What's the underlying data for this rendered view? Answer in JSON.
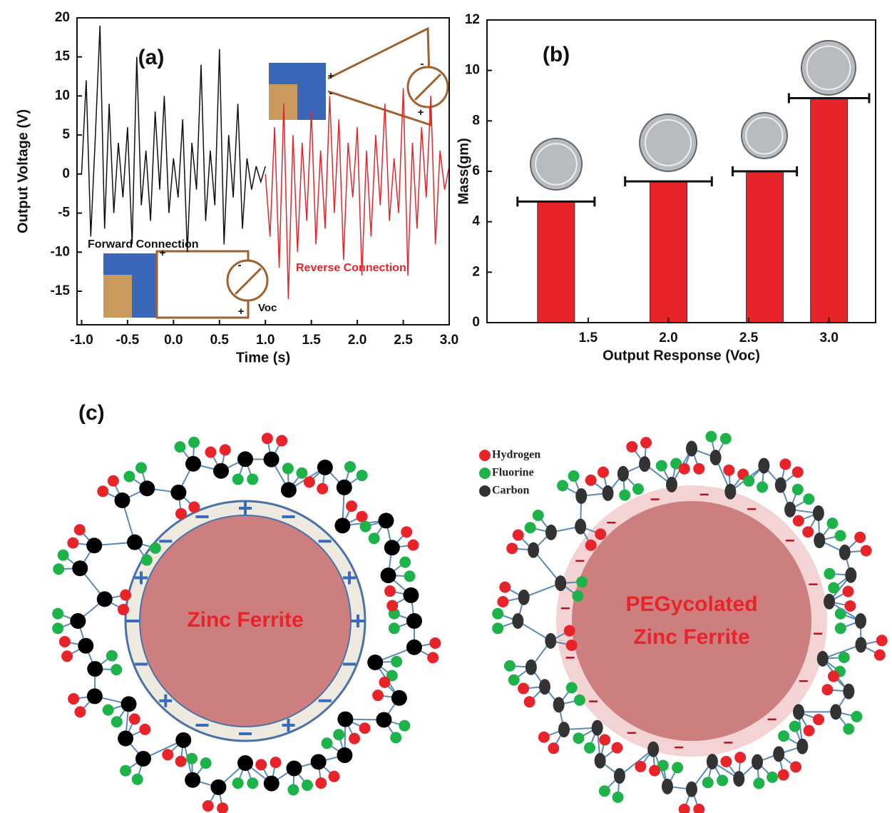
{
  "chart_data": [
    {
      "type": "line",
      "x_label": "Time (s)",
      "y_label": "Output Voltage (V)",
      "annotations": [
        "(a)",
        "Forward Connection",
        "Reverse Connection",
        "Voc",
        "+",
        "-",
        "-",
        "+",
        "+",
        "-",
        "+"
      ],
      "xlim": [
        -1.05,
        3.0
      ],
      "ylim": [
        -19.3,
        20
      ],
      "xticks": [
        {
          "value": -1.0,
          "label": "-1.0"
        },
        -0.5,
        {
          "value": 0.0,
          "label": "0.0"
        },
        0.5,
        {
          "value": 1.0,
          "label": "1.0"
        },
        1.5,
        {
          "value": 2.0,
          "label": "2.0"
        },
        2.5,
        {
          "value": 3.0,
          "label": "3.0"
        }
      ],
      "yticks": [
        -15,
        -10,
        -5,
        0,
        5,
        10,
        15,
        20
      ],
      "series": [
        {
          "color": "#111111",
          "x": [
            -1.0,
            -0.95,
            -0.9,
            -0.85,
            -0.8,
            -0.75,
            -0.7,
            -0.65,
            -0.6,
            -0.55,
            -0.5,
            -0.45,
            -0.4,
            -0.35,
            -0.3,
            -0.25,
            -0.2,
            -0.15,
            -0.1,
            -0.05,
            0.0,
            0.05,
            0.1,
            0.15,
            0.2,
            0.25,
            0.3,
            0.35,
            0.4,
            0.45,
            0.5,
            0.55,
            0.6,
            0.65,
            0.7,
            0.75,
            0.8,
            0.85,
            0.9,
            0.95,
            1.0
          ],
          "values": [
            0,
            12,
            -8,
            5,
            19,
            -7,
            9,
            -5,
            4,
            -3,
            6,
            -9,
            15,
            -4,
            3,
            -6,
            8,
            -2,
            10,
            -5,
            2,
            -3,
            7,
            -10,
            4,
            -2,
            14,
            -6,
            3,
            -4,
            16,
            -9,
            5,
            -3,
            9,
            -7,
            2,
            -2,
            1,
            -1,
            1
          ]
        },
        {
          "color": "#e8242b",
          "x": [
            1.0,
            1.05,
            1.1,
            1.15,
            1.2,
            1.25,
            1.3,
            1.35,
            1.4,
            1.45,
            1.5,
            1.55,
            1.6,
            1.65,
            1.7,
            1.75,
            1.8,
            1.85,
            1.9,
            1.95,
            2.0,
            2.05,
            2.1,
            2.15,
            2.2,
            2.25,
            2.3,
            2.35,
            2.4,
            2.45,
            2.5,
            2.55,
            2.6,
            2.65,
            2.7,
            2.75,
            2.8,
            2.85,
            2.9,
            2.95,
            3.0
          ],
          "values": [
            0,
            -8,
            6,
            -12,
            9,
            -16,
            5,
            -10,
            4,
            -6,
            8,
            -9,
            3,
            -7,
            10,
            -5,
            7,
            -11,
            4,
            -3,
            6,
            -13,
            3,
            -8,
            5,
            -4,
            9,
            -6,
            2,
            -5,
            11,
            -13,
            4,
            -7,
            6,
            -3,
            10,
            -9,
            3,
            -2,
            1
          ]
        }
      ]
    },
    {
      "type": "bar",
      "x_label": "Output Response (Voc)",
      "y_label": "Mass(gm)",
      "annotations": [
        "(b)"
      ],
      "color": "#e8242b",
      "x": [
        1.3,
        2.0,
        2.6,
        3.0
      ],
      "values": [
        4.8,
        5.6,
        6.0,
        8.9
      ],
      "xerr": [
        0.24,
        0.27,
        0.2,
        0.25
      ],
      "xlim": [
        0.87,
        3.29
      ],
      "ylim": [
        0,
        12
      ],
      "xticks": [
        1.5,
        {
          "value": 2.0,
          "label": "2.0"
        },
        2.5,
        {
          "value": 3.0,
          "label": "3.0"
        }
      ],
      "yticks": [
        0,
        2,
        4,
        6,
        8,
        10,
        12
      ]
    }
  ],
  "diagram": {
    "label": "(c)",
    "legend": [
      "Hydrogen",
      "Fluorine",
      "Carbon"
    ],
    "left_core": "Zinc Ferrite",
    "right_core": [
      "PEGycolated",
      "Zinc Ferrite"
    ]
  }
}
